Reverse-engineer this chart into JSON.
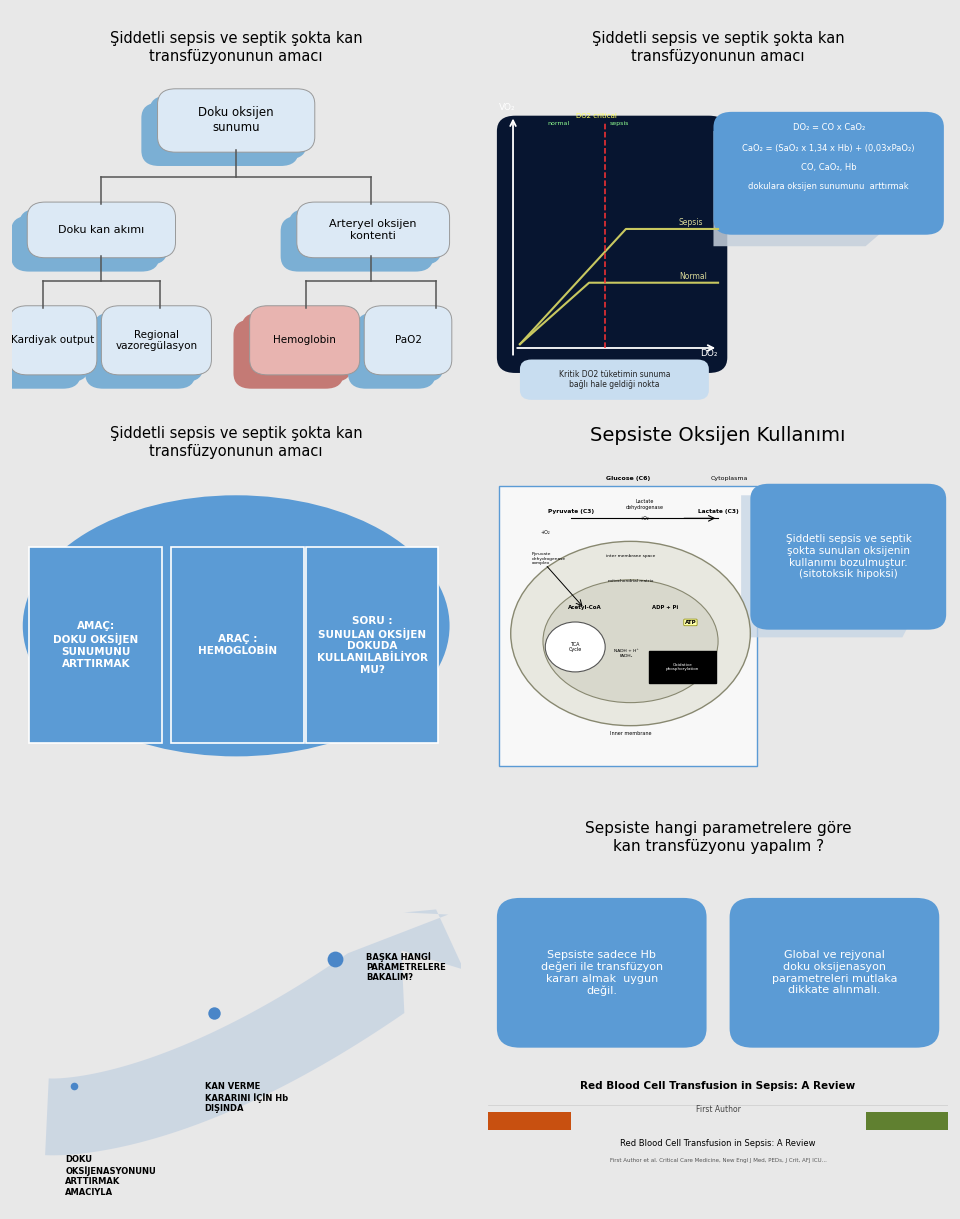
{
  "bg_color": "#e8e8e8",
  "panel_bg": "#ffffff",
  "border_color": "#888888",
  "panel1_title": "Şiddetli sepsis ve septik şokta kan\ntransfüzyonunun amacı",
  "panel2_title": "Şiddetli sepsis ve septik şokta kan\ntransfüzyonunun amacı",
  "panel3_title": "Şiddetli sepsis ve septik şokta kan\ntransfüzyonunun amacı",
  "panel4_title": "Sepsiste Oksijen Kullanımı",
  "panel5_title": "",
  "panel6_title": "Sepsiste hangi parametrelere göre\nkan transfüzyonu yapalım ?",
  "box_blue_light": "#dce9f5",
  "box_blue_medium": "#7bafd4",
  "box_pink": "#e8b4b0",
  "box_pink_shadow": "#c47a75",
  "p2_formula_bg": "#5b9bd5",
  "p2_formula_lines": [
    "DO₂ = CO x CaO₂",
    "CaO₂ = (SaO₂ x 1,34 x Hb) + (0,03xPaO₂)",
    "CO, CaO₂, Hb",
    "dokulara oksijen sunumunu  arttırmak"
  ],
  "p2_kritik_text": "Kritik DO2 tüketimin sunuma\nbağlı hale geldiği nokta",
  "p3_oval_color": "#5b9bd5",
  "p3_box_texts": [
    "AMAÇ:\nDOKU OKSİJEN\nSUNUMUNU\nARTTIRMAK",
    "ARAÇ :\nHEMOGLOBİN",
    "SORU :\nSUNULAN OKSİJEN\nDOKUDA\nKULLANILABİLİYOR\nMU?"
  ],
  "p4_right_text": "Şiddetli sepsis ve septik\nşokta sunulan oksijenin\nkullanımı bozulmuştur.\n(sitotoksik hipoksi)",
  "p4_right_bg": "#5b9bd5",
  "p5_dot_color": "#4a86c8",
  "p5_arrow_color": "#c8d4e0",
  "p5_items": [
    {
      "text": "DOKU\nOKSİJENASYONUNU\nARTTIRMAK\nAMACIYLA",
      "dot_size": 30
    },
    {
      "text": "KAN VERME\nKARARINI İÇİN Hb\nDIŞINDA",
      "dot_size": 60
    },
    {
      "text": "BAŞKA HANGİ\nPARAMETRELERE\nBAKALIM?",
      "dot_size": 90
    }
  ],
  "p6_box1_text": "Sepsiste sadece Hb\ndeğeri ile transfüzyon\nkararı almak  uygun\ndeğil.",
  "p6_box2_text": "Global ve rejyonal\ndoku oksijenasyon\nparametreleri mutlaka\ndikkate alınmalı.",
  "p6_box_bg": "#5b9bd5",
  "p6_footer_orange": "#c85010",
  "p6_footer_green": "#608030",
  "p6_footer_title": "Red Blood Cell Transfusion in Sepsis: A Review"
}
